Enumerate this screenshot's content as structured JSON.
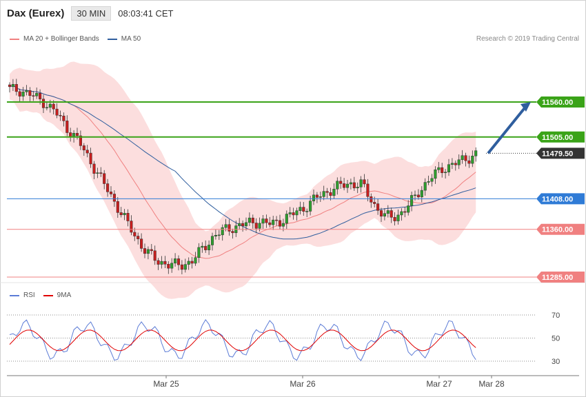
{
  "header": {
    "title": "Dax (Eurex)",
    "timeframe": "30 MIN",
    "time": "08:03:41 CET"
  },
  "legend": {
    "bb_label": "MA 20 + Bollinger Bands",
    "ma50_label": "MA 50",
    "bb_color": "#f08080",
    "ma50_color": "#2f5e9e"
  },
  "copyright": "Research © 2019 Trading Central",
  "rsi_legend": {
    "rsi_label": "RSI",
    "ma_label": "9MA",
    "rsi_color": "#5b7bd6",
    "ma_color": "#e00000"
  },
  "chart_data": {
    "type": "candlestick",
    "price_levels": [
      {
        "label": "11560.00",
        "value": 11560,
        "color": "#3aa318",
        "kind": "resistance"
      },
      {
        "label": "11505.00",
        "value": 11505,
        "color": "#3aa318",
        "kind": "resistance"
      },
      {
        "label": "11479.50",
        "value": 11479.5,
        "color": "#333333",
        "kind": "last"
      },
      {
        "label": "11408.00",
        "value": 11408,
        "color": "#2f7bd6",
        "kind": "pivot"
      },
      {
        "label": "11360.00",
        "value": 11360,
        "color": "#f08080",
        "kind": "support"
      },
      {
        "label": "11285.00",
        "value": 11285,
        "color": "#f08080",
        "kind": "support"
      }
    ],
    "x_labels": [
      "Mar 25",
      "Mar 26",
      "Mar 27",
      "Mar 28"
    ],
    "rsi_levels": [
      70,
      50,
      30
    ],
    "arrow": {
      "from": 11479.5,
      "to": 11560,
      "color": "#2f5e9e"
    }
  }
}
